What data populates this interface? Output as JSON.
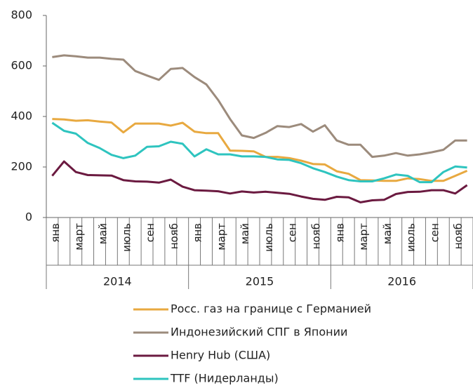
{
  "chart_data": {
    "type": "line",
    "categories": [
      "янв",
      null,
      "март",
      null,
      "май",
      null,
      "июль",
      null,
      "сен",
      null,
      "нояб",
      null,
      "янв",
      null,
      "март",
      null,
      "май",
      null,
      "июль",
      null,
      "сен",
      null,
      "нояб",
      null,
      "янв",
      null,
      "март",
      null,
      "май",
      null,
      "июль",
      null,
      "сен",
      null,
      "нояб",
      null
    ],
    "groups": [
      "2014",
      "2015",
      "2016"
    ],
    "ylim": [
      0,
      800
    ],
    "yticks": [
      0,
      200,
      400,
      600,
      800
    ],
    "series": [
      {
        "name": "Росс. газ на границе с Германией",
        "color": "#e8a940",
        "values": [
          390,
          388,
          383,
          385,
          380,
          376,
          337,
          372,
          372,
          372,
          364,
          375,
          340,
          334,
          334,
          265,
          264,
          262,
          240,
          240,
          235,
          225,
          212,
          210,
          183,
          173,
          148,
          147,
          145,
          145,
          155,
          152,
          145,
          145,
          165,
          185
        ]
      },
      {
        "name": "Индонезийский СПГ в Японии",
        "color": "#9c8b7c",
        "values": [
          635,
          642,
          638,
          633,
          633,
          628,
          625,
          580,
          562,
          545,
          588,
          592,
          556,
          527,
          465,
          390,
          325,
          315,
          335,
          362,
          358,
          370,
          340,
          365,
          305,
          288,
          288,
          240,
          245,
          255,
          245,
          250,
          258,
          268,
          305,
          305
        ]
      },
      {
        "name": "Henry Hub (США)",
        "color": "#6b1a40",
        "values": [
          165,
          222,
          180,
          168,
          167,
          166,
          148,
          143,
          142,
          138,
          150,
          122,
          108,
          106,
          104,
          95,
          103,
          99,
          102,
          98,
          94,
          83,
          74,
          70,
          82,
          80,
          60,
          68,
          70,
          93,
          101,
          102,
          108,
          108,
          95,
          128
        ]
      },
      {
        "name": "TTF (Нидерланды)",
        "color": "#2ec4bf",
        "values": [
          375,
          343,
          332,
          295,
          275,
          248,
          235,
          245,
          280,
          282,
          300,
          292,
          242,
          270,
          250,
          250,
          242,
          242,
          240,
          230,
          228,
          215,
          195,
          180,
          162,
          148,
          143,
          143,
          155,
          170,
          165,
          140,
          140,
          180,
          202,
          198
        ]
      }
    ]
  }
}
